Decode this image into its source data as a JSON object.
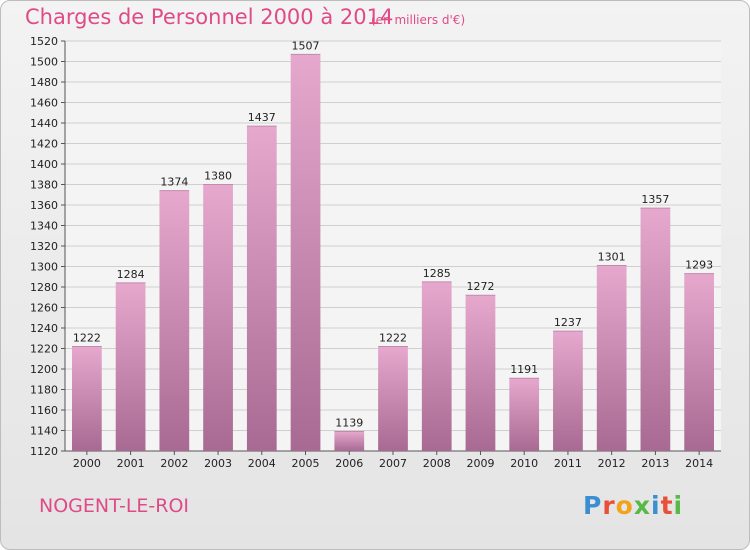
{
  "header": {
    "title": "Charges de Personnel 2000 à 2014",
    "subtitle": "(en milliers d'€)"
  },
  "footer": {
    "commune": "NOGENT-LE-ROI",
    "brand": "Proxiti"
  },
  "colors": {
    "accent": "#e04a86",
    "bar_top": "#e6a8cd",
    "bar_bottom": "#a86a92"
  },
  "chart_data": {
    "type": "bar",
    "title": "Charges de Personnel 2000 à 2014",
    "subtitle": "(en milliers d'€)",
    "categories": [
      "2000",
      "2001",
      "2002",
      "2003",
      "2004",
      "2005",
      "2006",
      "2007",
      "2008",
      "2009",
      "2010",
      "2011",
      "2012",
      "2013",
      "2014"
    ],
    "values": [
      1222,
      1284,
      1374,
      1380,
      1437,
      1507,
      1139,
      1222,
      1285,
      1272,
      1191,
      1237,
      1301,
      1357,
      1293
    ],
    "xlabel": "",
    "ylabel": "",
    "ylim": [
      1120,
      1520
    ],
    "ytick_step": 20,
    "grid": true,
    "data_labels": true
  }
}
